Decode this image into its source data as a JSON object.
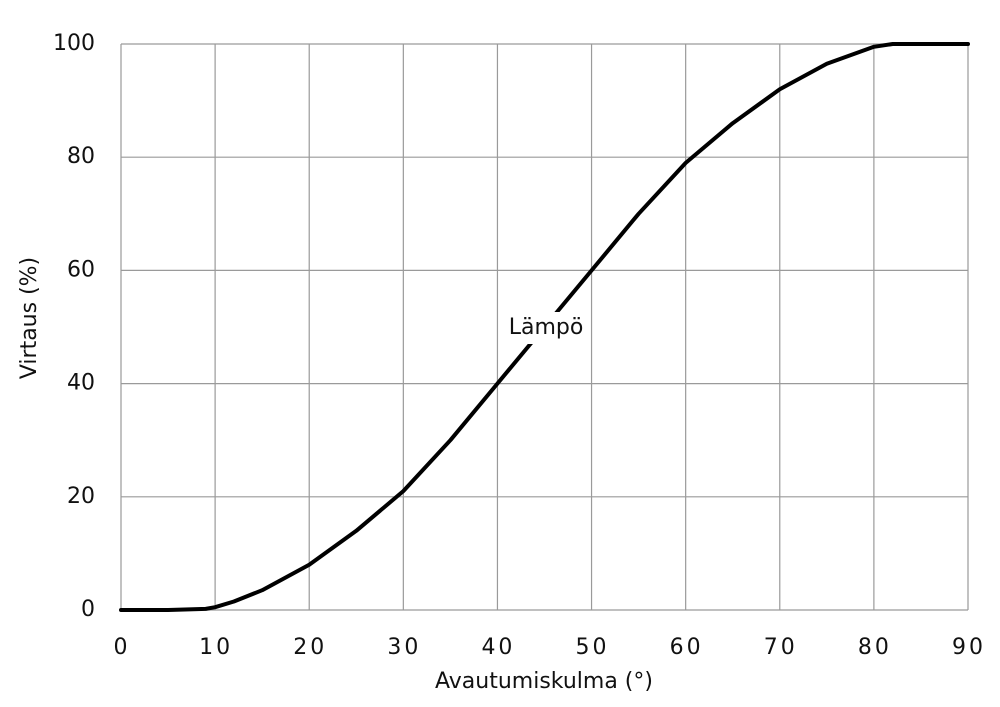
{
  "chart_data": {
    "type": "line",
    "x_label": "Avautumiskulma (°)",
    "y_label": "Virtaus (%)",
    "x": [
      0,
      5,
      9,
      10,
      12,
      15,
      20,
      25,
      30,
      35,
      40,
      45,
      50,
      55,
      60,
      65,
      70,
      75,
      80,
      82,
      90
    ],
    "series": [
      {
        "name": "Lämpö",
        "color": "#000000",
        "values": [
          0,
          0,
          0.2,
          0.5,
          1.5,
          3.5,
          8,
          14,
          21,
          30,
          40,
          50,
          60,
          70,
          79,
          86,
          92,
          96.5,
          99.5,
          100,
          100
        ]
      }
    ],
    "xlim": [
      0,
      90
    ],
    "ylim": [
      0,
      100
    ],
    "xticks": [
      0,
      10,
      20,
      30,
      40,
      50,
      60,
      70,
      80,
      90
    ],
    "yticks": [
      0,
      20,
      40,
      60,
      80,
      100
    ],
    "grid": true
  }
}
